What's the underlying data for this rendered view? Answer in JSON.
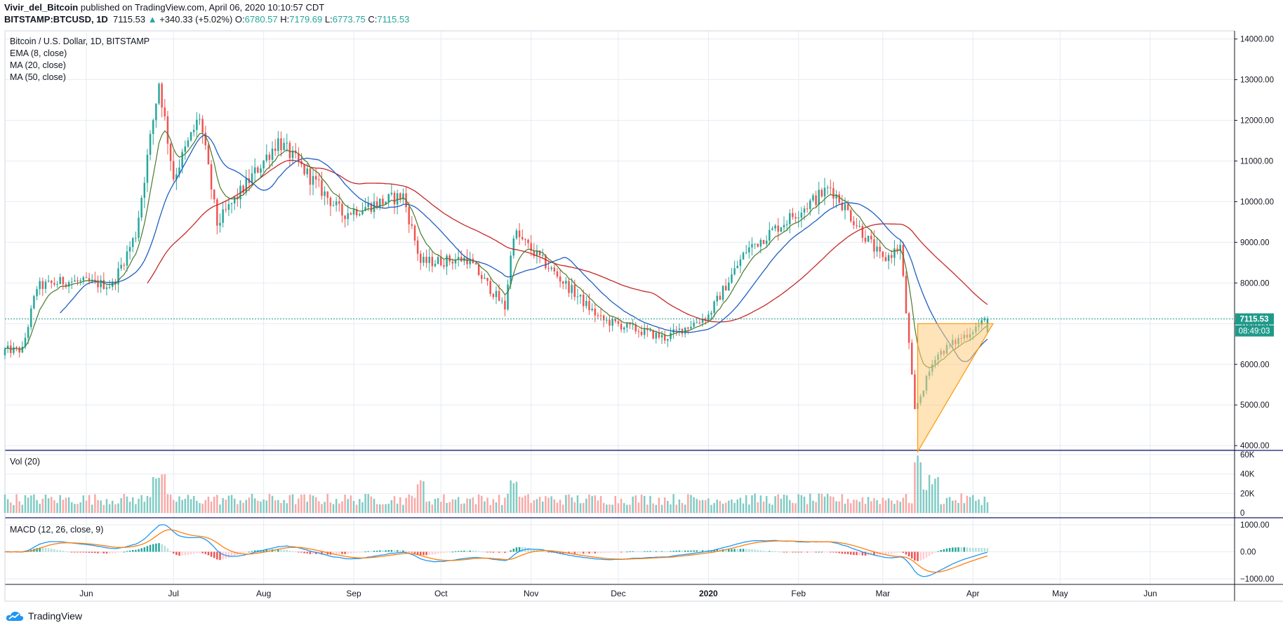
{
  "header": {
    "author": "Vivir_del_Bitcoin",
    "published_text": "published on TradingView.com, April 06, 2020 10:10:57 CDT",
    "symbol": "BITSTAMP:BTCUSD, 1D",
    "last": "7115.53",
    "change": "+340.33 (+5.02%)",
    "o_label": "O:",
    "o": "6780.57",
    "h_label": "H:",
    "h": "7179.69",
    "l_label": "L:",
    "l": "6773.75",
    "c_label": "C:",
    "c": "7115.53"
  },
  "main_legend": {
    "title": "Bitcoin / U.S. Dollar, 1D, BITSTAMP",
    "ema": "EMA (8, close)",
    "ma20": "MA (20, close)",
    "ma50": "MA (50, close)"
  },
  "price_tag": "7115.53",
  "countdown_tag": "08:49:03",
  "vol_legend": "Vol (20)",
  "macd_legend": "MACD (12, 26, close, 9)",
  "brand": "TradingView",
  "colors": {
    "up": "#26a69a",
    "down": "#ef5350",
    "ema": "#4a7a2a",
    "ma20": "#1f5fc0",
    "ma50": "#c62828",
    "macd": "#2196f3",
    "signal": "#ff7f0e",
    "triangle_fill": "#ffcc80",
    "triangle_stroke": "#ff9800",
    "grid": "#e6ebf2",
    "tag_bg": "#1e9a8a"
  },
  "chart_data": [
    {
      "type": "candlestick",
      "title": "Bitcoin / U.S. Dollar, 1D, BITSTAMP",
      "x_ticks": [
        "Jun",
        "Jul",
        "Aug",
        "Sep",
        "Oct",
        "Nov",
        "Dec",
        "2020",
        "Feb",
        "Mar",
        "Apr",
        "May",
        "Jun"
      ],
      "y_ticks": [
        "14000.00",
        "13000.00",
        "12000.00",
        "11000.00",
        "10000.00",
        "9000.00",
        "8000.00",
        "7000.00",
        "6000.00",
        "5000.00",
        "4000.00"
      ],
      "ylim": [
        3900,
        14200
      ],
      "last_price": 7115.53,
      "key_closes": [
        {
          "date": "2019-05-10",
          "close": 6350
        },
        {
          "date": "2019-05-15",
          "close": 7900
        },
        {
          "date": "2019-05-25",
          "close": 8050
        },
        {
          "date": "2019-06-10",
          "close": 7950
        },
        {
          "date": "2019-06-18",
          "close": 9200
        },
        {
          "date": "2019-06-26",
          "close": 12950
        },
        {
          "date": "2019-07-01",
          "close": 10600
        },
        {
          "date": "2019-07-10",
          "close": 12100
        },
        {
          "date": "2019-07-16",
          "close": 9450
        },
        {
          "date": "2019-08-06",
          "close": 11500
        },
        {
          "date": "2019-08-28",
          "close": 9700
        },
        {
          "date": "2019-09-18",
          "close": 10150
        },
        {
          "date": "2019-09-24",
          "close": 8500
        },
        {
          "date": "2019-10-10",
          "close": 8600
        },
        {
          "date": "2019-10-23",
          "close": 7400
        },
        {
          "date": "2019-10-26",
          "close": 9250
        },
        {
          "date": "2019-11-25",
          "close": 7100
        },
        {
          "date": "2019-12-17",
          "close": 6650
        },
        {
          "date": "2020-01-01",
          "close": 7200
        },
        {
          "date": "2020-01-14",
          "close": 8800
        },
        {
          "date": "2020-02-12",
          "close": 10350
        },
        {
          "date": "2020-03-01",
          "close": 8550
        },
        {
          "date": "2020-03-07",
          "close": 8900
        },
        {
          "date": "2020-03-12",
          "close": 4850
        },
        {
          "date": "2020-03-19",
          "close": 6200
        },
        {
          "date": "2020-04-06",
          "close": 7115.53
        }
      ],
      "ema8_end": 6900,
      "ma20_end": 6400,
      "ma50_end": 7550,
      "triangle": {
        "top": 7000,
        "bottom": 3850,
        "from": "2020-03-13",
        "to": "2020-04-06"
      }
    },
    {
      "type": "bar",
      "title": "Vol (20)",
      "y_ticks": [
        "60K",
        "40K",
        "20K",
        "0"
      ],
      "ylim": [
        0,
        60000
      ],
      "peak_date": "2020-03-13",
      "peak_value": 59000
    },
    {
      "type": "line",
      "title": "MACD (12, 26, close, 9)",
      "y_ticks": [
        "1000.00",
        "0.00",
        "−1000.00"
      ],
      "ylim": [
        -1100,
        1100
      ],
      "series": [
        {
          "name": "MACD",
          "min": -1050,
          "max": 1000
        },
        {
          "name": "Signal",
          "min": -800,
          "max": 850
        }
      ]
    }
  ]
}
